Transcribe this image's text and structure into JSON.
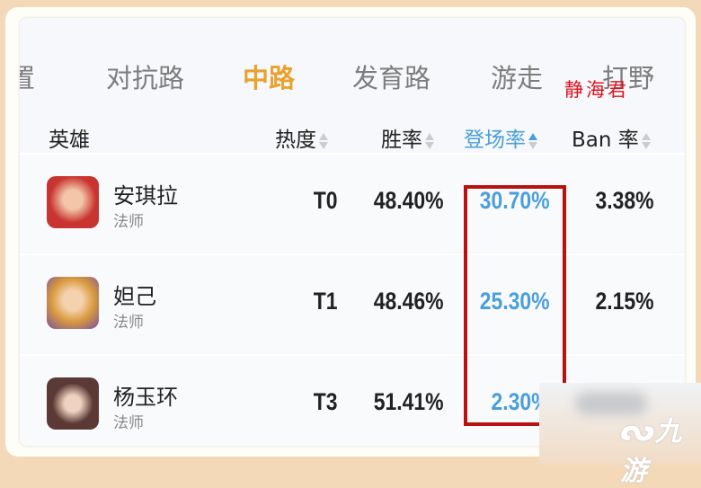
{
  "tabs": [
    {
      "label": "置"
    },
    {
      "label": "对抗路"
    },
    {
      "label": "中路",
      "active": true
    },
    {
      "label": "发育路"
    },
    {
      "label": "游走"
    },
    {
      "label": "打野"
    }
  ],
  "watermark": "静海君",
  "columns": {
    "hero": "英雄",
    "heat": "热度",
    "win": "胜率",
    "pick": "登场率",
    "ban": "Ban 率"
  },
  "sorted_column": "pick",
  "rows": [
    {
      "name": "安琪拉",
      "role": "法师",
      "tier": "T0",
      "win": "48.40%",
      "pick": "30.70%",
      "ban": "3.38%",
      "avatar_color": "#c8342f"
    },
    {
      "name": "妲己",
      "role": "法师",
      "tier": "T1",
      "win": "48.46%",
      "pick": "25.30%",
      "ban": "2.15%",
      "avatar_color": "#d99a3d"
    },
    {
      "name": "杨玉环",
      "role": "法师",
      "tier": "T3",
      "win": "51.41%",
      "pick": "2.30%",
      "ban": "",
      "avatar_color": "#5b3a36"
    }
  ],
  "logo": "九游",
  "colors": {
    "accent": "#e8a22d",
    "sort_active": "#4a9fdb",
    "highlight_box": "#b8120f"
  }
}
